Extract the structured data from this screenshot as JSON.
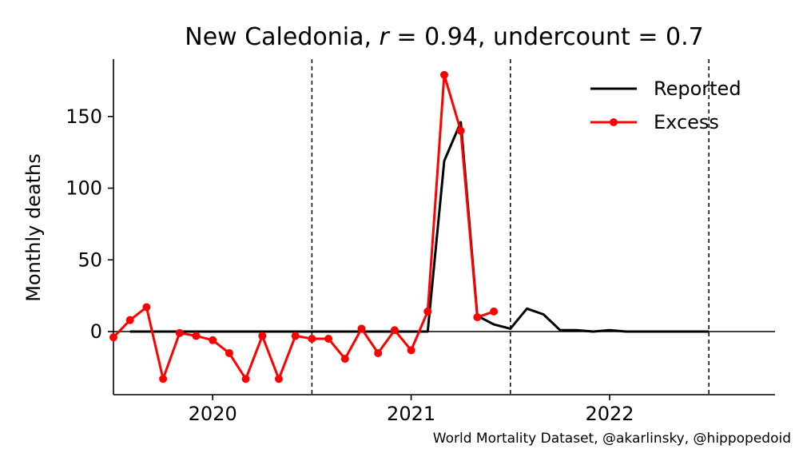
{
  "chart_data": {
    "type": "line",
    "title": "New Caledonia, r = 0.94, undercount = 0.7",
    "title_parts": {
      "country": "New Caledonia, ",
      "r_symbol": "r",
      "r_text": " = 0.94, undercount = 0.7"
    },
    "xlabel": "",
    "ylabel": "Monthly deaths",
    "xlim": [
      "2019-07",
      "2022-11"
    ],
    "ylim": [
      -44,
      190
    ],
    "yticks": [
      0,
      50,
      100,
      150
    ],
    "xticks": [
      {
        "label": "2020",
        "date": "2020-01"
      },
      {
        "label": "2021",
        "date": "2021-01"
      },
      {
        "label": "2022",
        "date": "2022-01"
      }
    ],
    "vlines": [
      "2020-07",
      "2021-07",
      "2022-07"
    ],
    "legend_position": "top-right",
    "series": [
      {
        "name": "Reported",
        "color": "#000000",
        "marker": false,
        "x": [
          "2019-08",
          "2019-09",
          "2019-10",
          "2019-11",
          "2019-12",
          "2020-01",
          "2020-02",
          "2020-03",
          "2020-04",
          "2020-05",
          "2020-06",
          "2020-07",
          "2020-08",
          "2020-09",
          "2020-10",
          "2020-11",
          "2020-12",
          "2021-01",
          "2021-02",
          "2021-03",
          "2021-04",
          "2021-05",
          "2021-06",
          "2021-07",
          "2021-08",
          "2021-09",
          "2021-10",
          "2021-11",
          "2021-12",
          "2022-01",
          "2022-02",
          "2022-03",
          "2022-04",
          "2022-05",
          "2022-06",
          "2022-07"
        ],
        "values": [
          0,
          0,
          0,
          0,
          0,
          0,
          0,
          0,
          0,
          0,
          0,
          0,
          0,
          0,
          0,
          0,
          0,
          0,
          0,
          119,
          146,
          11,
          5,
          2,
          16,
          12,
          1,
          1,
          0,
          1,
          0,
          0,
          0,
          0,
          0,
          0
        ]
      },
      {
        "name": "Excess",
        "color": "#ff0000",
        "marker": true,
        "x": [
          "2019-07",
          "2019-08",
          "2019-09",
          "2019-10",
          "2019-11",
          "2019-12",
          "2020-01",
          "2020-02",
          "2020-03",
          "2020-04",
          "2020-05",
          "2020-06",
          "2020-07",
          "2020-08",
          "2020-09",
          "2020-10",
          "2020-11",
          "2020-12",
          "2021-01",
          "2021-02",
          "2021-03",
          "2021-04",
          "2021-05",
          "2021-06"
        ],
        "values": [
          -4,
          8,
          17,
          -33,
          -1,
          -3,
          -6,
          -15,
          -33,
          -3,
          -33,
          -3,
          -5,
          -5,
          -19,
          2,
          -15,
          1,
          -13,
          14,
          179,
          140,
          10,
          14
        ]
      }
    ]
  },
  "credit": "World Mortality Dataset, @akarlinsky, @hippopedoid"
}
